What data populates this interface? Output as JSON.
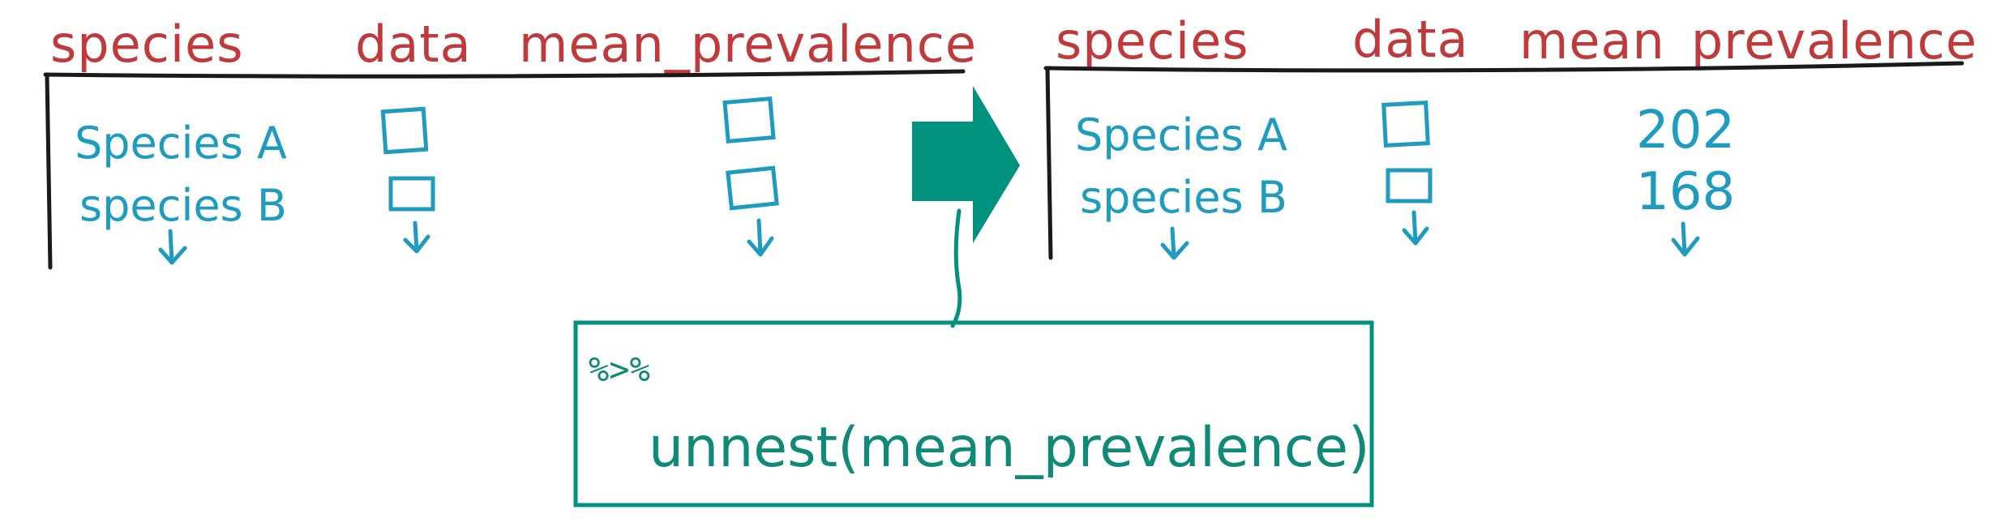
{
  "colors": {
    "header": "#c0393b",
    "cell": "#1e9cc0",
    "accent": "#00927f",
    "code": "#0f8a78",
    "rule": "#1a1a1a"
  },
  "left_table": {
    "headers": [
      "species",
      "data",
      "mean_prevalence"
    ],
    "rows": [
      "Species A",
      "species B"
    ]
  },
  "right_table": {
    "headers": [
      "species",
      "data",
      "mean_prevalence"
    ],
    "rows": [
      "Species A",
      "species B"
    ],
    "values": [
      "202",
      "168"
    ]
  },
  "code": {
    "pipe": "%>%",
    "call": "unnest(mean_prevalence)"
  }
}
